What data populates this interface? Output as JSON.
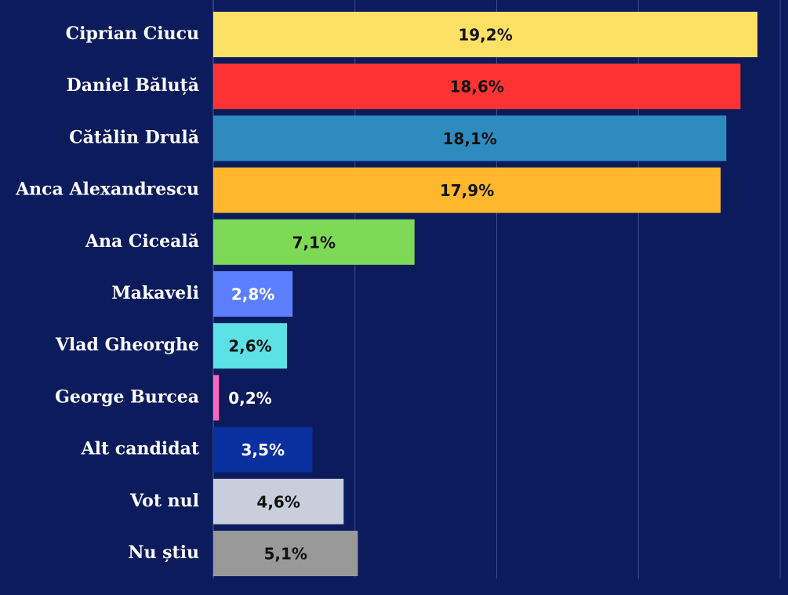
{
  "chart_data": {
    "type": "bar",
    "orientation": "horizontal",
    "title": "",
    "xlabel": "",
    "ylabel": "",
    "xlim": [
      0,
      20
    ],
    "grid": true,
    "legend": "none",
    "categories": [
      "Ciprian Ciucu",
      "Daniel Băluță",
      "Cătălin Drulă",
      "Anca Alexandrescu",
      "Ana Ciceală",
      "Makaveli",
      "Vlad Gheorghe",
      "George Burcea",
      "Alt candidat",
      "Vot nul",
      "Nu știu"
    ],
    "values": [
      19.2,
      18.6,
      18.1,
      17.9,
      7.1,
      2.8,
      2.6,
      0.2,
      3.5,
      4.6,
      5.1
    ],
    "value_labels": [
      "19,2%",
      "18,6%",
      "18,1%",
      "17,9%",
      "7,1%",
      "2,8%",
      "2,6%",
      "0,2%",
      "3,5%",
      "4,6%",
      "5,1%"
    ],
    "colors": [
      "#ffe066",
      "#ff3333",
      "#2e8bc0",
      "#ffb82e",
      "#7ed957",
      "#5b7fff",
      "#5ce1e6",
      "#ff66c4",
      "#0a2f9e",
      "#c9cedd",
      "#999999"
    ],
    "label_colors": [
      "#111111",
      "#111111",
      "#111111",
      "#111111",
      "#111111",
      "#ffffff",
      "#111111",
      "#ffffff",
      "#ffffff",
      "#111111",
      "#111111"
    ]
  },
  "style": {
    "background": "#0b1b5c",
    "gridline_color": "#3a4a8a",
    "axis_color": "#3a4a8a"
  }
}
